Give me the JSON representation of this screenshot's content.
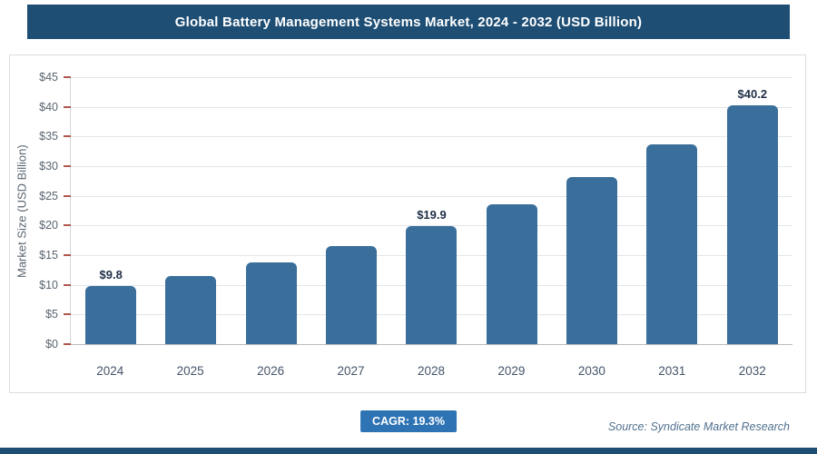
{
  "header": {
    "title": "Global Battery Management Systems Market, 2024 - 2032 (USD Billion)"
  },
  "chart_data": {
    "type": "bar",
    "title": "Global Battery Management Systems Market, 2024 - 2032 (USD Billion)",
    "ylabel": "Market Size (USD Billion)",
    "categories": [
      "2024",
      "2025",
      "2026",
      "2027",
      "2028",
      "2029",
      "2030",
      "2031",
      "2032"
    ],
    "values": [
      9.8,
      11.5,
      13.8,
      16.5,
      19.9,
      23.5,
      28.1,
      33.6,
      40.2
    ],
    "point_labels": {
      "2024": "$9.8",
      "2028": "$19.9",
      "2032": "$40.2"
    },
    "ylim": [
      0,
      45
    ],
    "ytick_step": 5,
    "ytick_labels": [
      "$0",
      "$5",
      "$10",
      "$15",
      "$20",
      "$25",
      "$30",
      "$35",
      "$40",
      "$45"
    ],
    "grid": true,
    "legend": "none",
    "bar_color": "#3a6f9b"
  },
  "footer": {
    "cagr_label": "CAGR: 19.3%",
    "source": "Source: Syndicate Market Research"
  },
  "colors": {
    "header_bg": "#1e4e74",
    "bar": "#3a6f9b",
    "cagr_bg": "#2e74b5",
    "y_tick_mark": "#b0564c",
    "bottom_strip": "#1e4e74"
  }
}
